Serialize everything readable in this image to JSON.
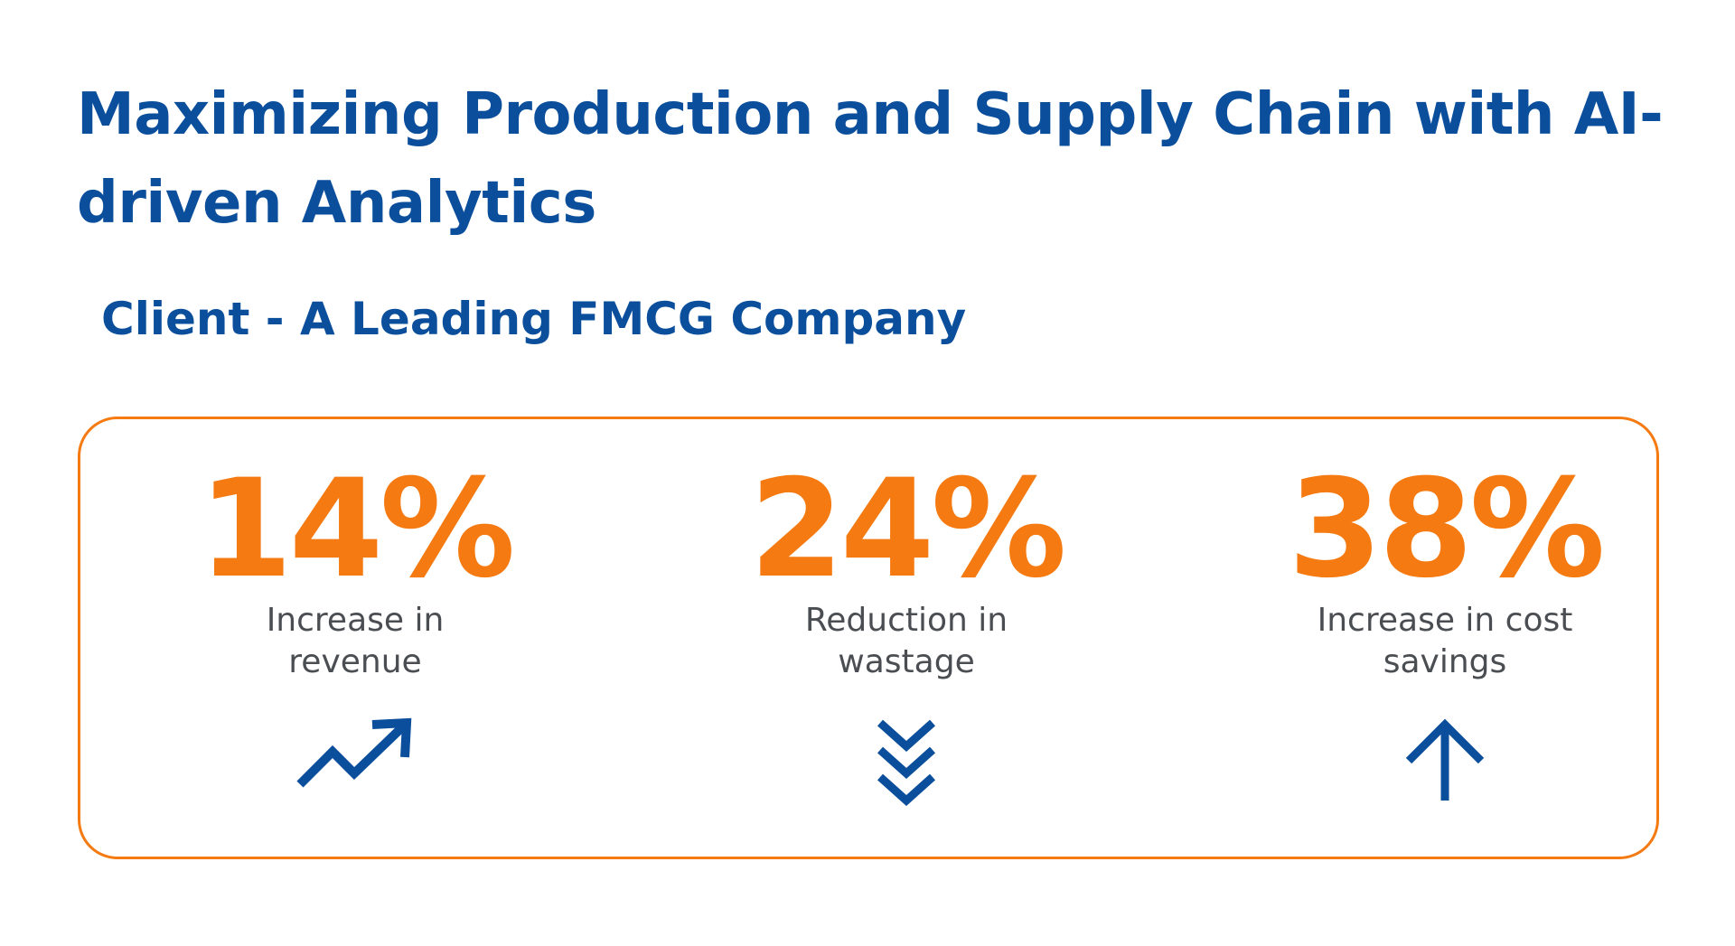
{
  "title": "Maximizing Production and Supply Chain with AI-driven Analytics",
  "subtitle": "Client - A Leading FMCG Company",
  "colors": {
    "primary_blue": "#0b4f9c",
    "accent_orange": "#f47a11",
    "label_gray": "#4a4d52"
  },
  "stats": [
    {
      "value": "14%",
      "label": "Increase in\nrevenue",
      "icon": "trending-up-icon"
    },
    {
      "value": "24%",
      "label": "Reduction in\nwastage",
      "icon": "triple-chevron-down-icon"
    },
    {
      "value": "38%",
      "label": "Increase in cost\nsavings",
      "icon": "arrow-up-icon"
    }
  ]
}
